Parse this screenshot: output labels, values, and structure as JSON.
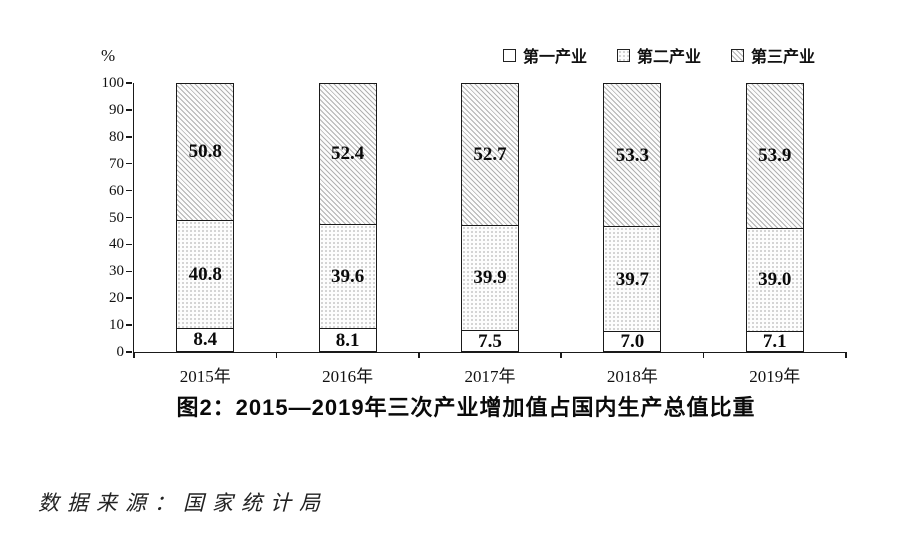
{
  "figure": {
    "percent_label": "%",
    "title": "图2：2015—2019年三次产业增加值占国内生产总值比重",
    "source": "数据来源：国家统计局"
  },
  "chart_data": {
    "type": "bar",
    "stacked": true,
    "categories": [
      "2015年",
      "2016年",
      "2017年",
      "2018年",
      "2019年"
    ],
    "series": [
      {
        "name": "第一产业",
        "fill": "plain",
        "values": [
          8.4,
          8.1,
          7.5,
          7.0,
          7.1
        ]
      },
      {
        "name": "第二产业",
        "fill": "dots",
        "values": [
          40.8,
          39.6,
          39.9,
          39.7,
          39.0
        ]
      },
      {
        "name": "第三产业",
        "fill": "hatch",
        "values": [
          50.8,
          52.4,
          52.7,
          53.3,
          53.9
        ]
      }
    ],
    "title": "图2：2015—2019年三次产业增加值占国内生产总值比重",
    "xlabel": "",
    "ylabel": "%",
    "ylim": [
      0,
      100
    ],
    "ytick_step": 10,
    "grid": false,
    "legend_position": "top-right",
    "colors": {
      "line": "#1a1a1a",
      "text": "#111111",
      "background": "#ffffff"
    }
  }
}
